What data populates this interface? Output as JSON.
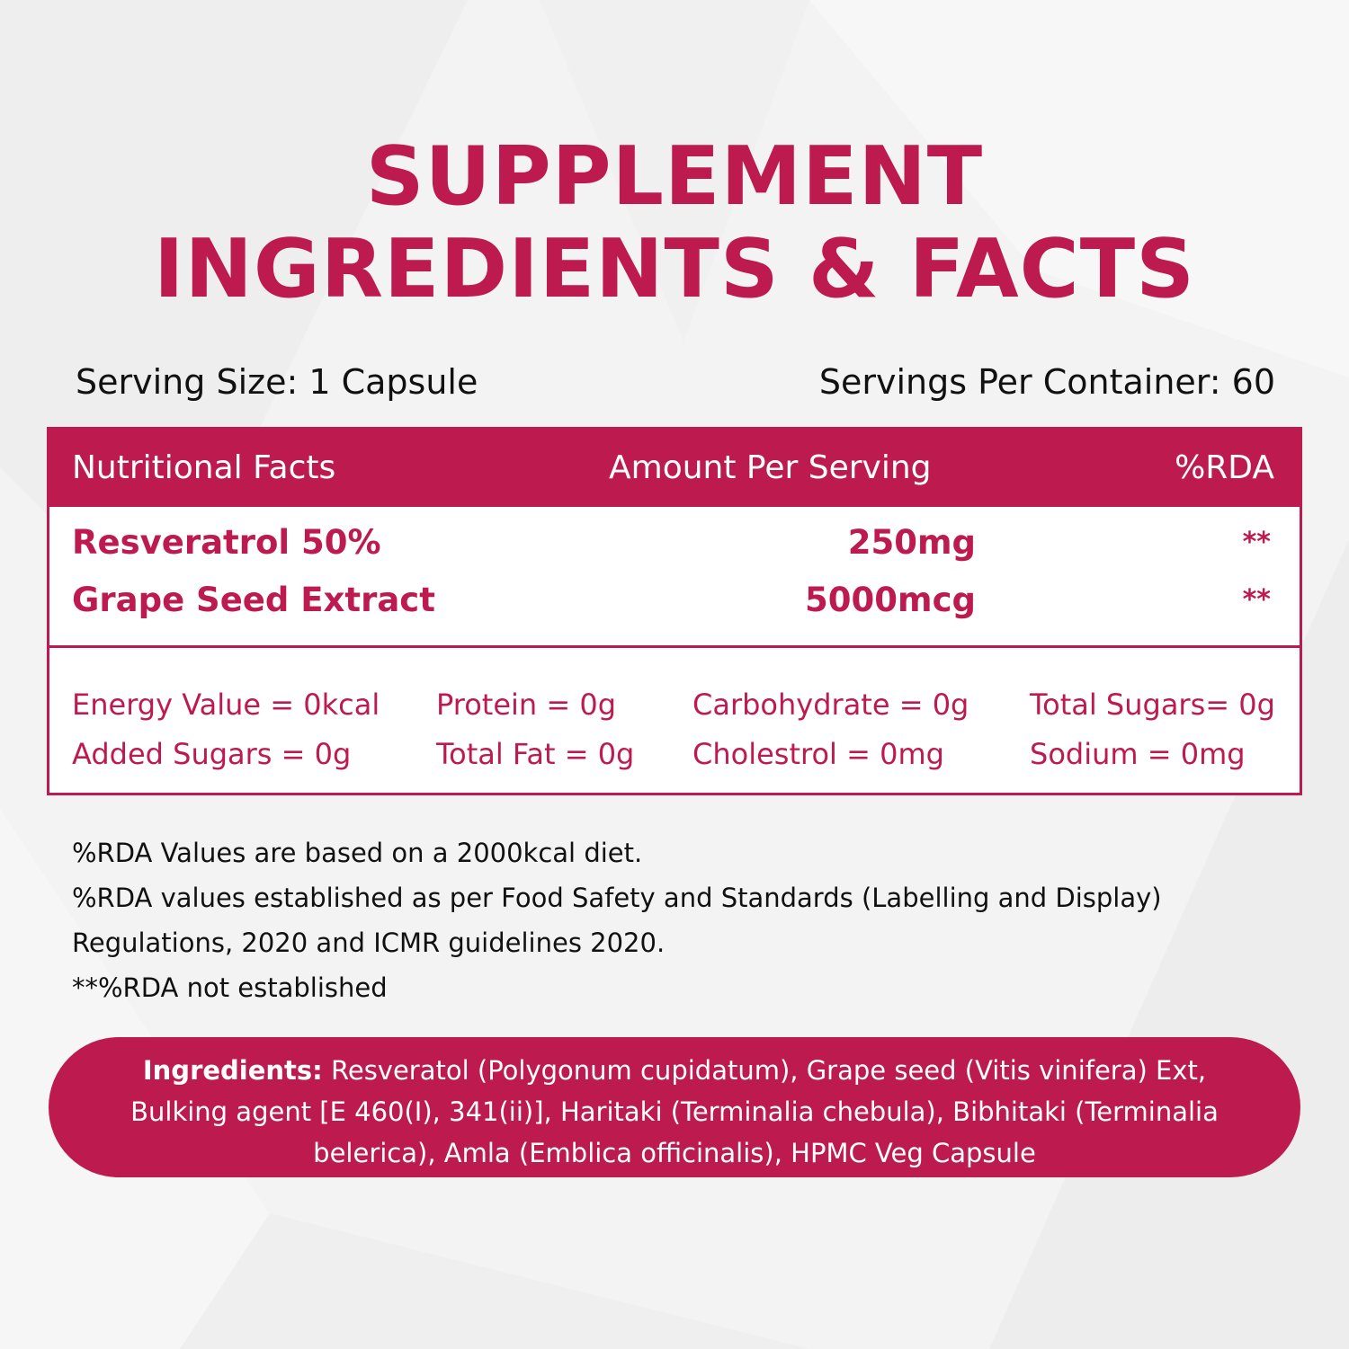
{
  "title": {
    "line1": "SUPPLEMENT",
    "line2": "INGREDIENTS & FACTS"
  },
  "serving": {
    "size": "Serving Size: 1 Capsule",
    "per_container": "Servings Per Container: 60"
  },
  "table": {
    "headers": [
      "Nutritional Facts",
      "Amount Per Serving",
      "%RDA"
    ],
    "rows": [
      {
        "name": "Resveratrol 50%",
        "amount": "250mg",
        "rda": "**"
      },
      {
        "name": "Grape Seed Extract",
        "amount": "5000mcg",
        "rda": "**"
      }
    ],
    "energy": [
      [
        "Energy Value = 0kcal",
        "Protein = 0g",
        "Carbohydrate = 0g",
        "Total Sugars= 0g"
      ],
      [
        "Added Sugars = 0g",
        "Total Fat = 0g",
        "Cholestrol = 0mg",
        "Sodium = 0mg"
      ]
    ]
  },
  "notes": [
    "%RDA Values are based on a 2000kcal diet.",
    "%RDA values established as per Food Safety and Standards (Labelling and Display)",
    "Regulations, 2020 and ICMR guidelines 2020.",
    "**%RDA not established"
  ],
  "ingredients": {
    "label": "Ingredients:",
    "text": " Resveratol (Polygonum cupidatum), Grape seed (Vitis vinifera) Ext, Bulking agent [E 460(I), 341(ii)], Haritaki (Terminalia chebula), Bibhitaki (Terminalia belerica), Amla (Emblica officinalis), HPMC Veg Capsule"
  },
  "colors": {
    "accent": "#bd1b4f",
    "background": "#f3f3f4",
    "text": "#111111"
  }
}
